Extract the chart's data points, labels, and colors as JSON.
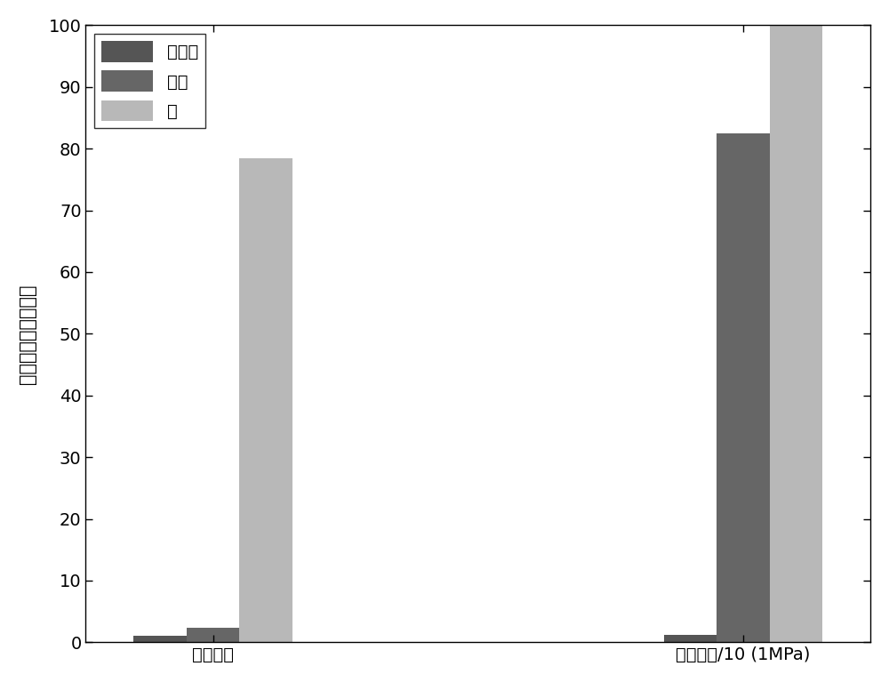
{
  "groups": [
    "介电常数",
    "平均密度/10 (1MPa)"
  ],
  "series": [
    {
      "label": "天然气",
      "color": "#555555",
      "values": [
        1.0,
        1.2
      ]
    },
    {
      "label": "原油",
      "color": "#666666",
      "values": [
        2.3,
        82.5
      ]
    },
    {
      "label": "水",
      "color": "#b8b8b8",
      "values": [
        78.5,
        100.0
      ]
    }
  ],
  "ylabel": "介电常数或平均密度",
  "ylim": [
    0,
    100
  ],
  "yticks": [
    0,
    10,
    20,
    30,
    40,
    50,
    60,
    70,
    80,
    90,
    100
  ],
  "bar_width": 0.25,
  "legend_loc": "upper left",
  "background_color": "#ffffff",
  "axes_edge_color": "#000000",
  "tick_label_fontsize": 14,
  "axis_label_fontsize": 15,
  "legend_fontsize": 14
}
